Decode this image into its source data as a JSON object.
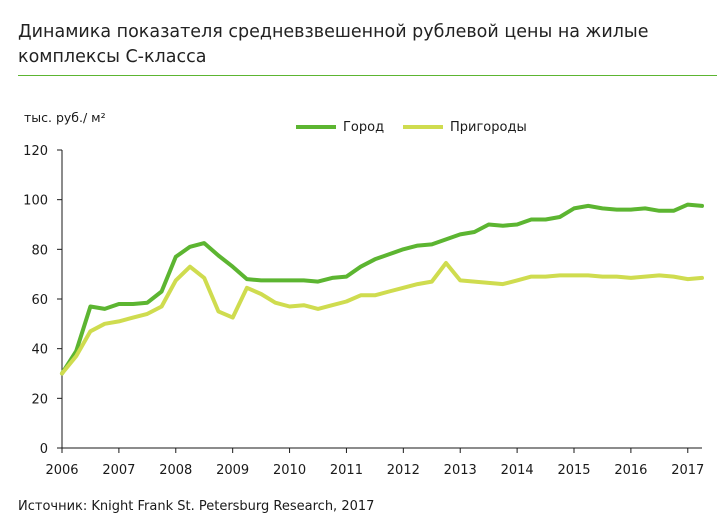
{
  "title": "Динамика показателя средневзвешенной рублевой цены на жилые комплексы С-класса",
  "source": "Источник: Knight Frank St. Petersburg Research, 2017",
  "colors": {
    "city": "#5cb531",
    "suburbs": "#cfdc4f",
    "axis": "#1a1a1a",
    "rule": "#5cb531"
  },
  "chart_data": {
    "type": "line",
    "ylabel": "тыс. руб./ м²",
    "ylim": [
      0,
      120
    ],
    "yticks": [
      0,
      20,
      40,
      60,
      80,
      100,
      120
    ],
    "xlim": [
      2006,
      2017.25
    ],
    "xticks": [
      "2006",
      "2007",
      "2008",
      "2009",
      "2010",
      "2011",
      "2012",
      "2013",
      "2014",
      "2015",
      "2016",
      "2017"
    ],
    "grid": false,
    "legend_position": "top-center",
    "series": [
      {
        "name": "Город",
        "color": "#5cb531",
        "x": [
          2006,
          2006.25,
          2006.5,
          2006.75,
          2007,
          2007.25,
          2007.5,
          2007.75,
          2008,
          2008.25,
          2008.5,
          2008.75,
          2009,
          2009.25,
          2009.5,
          2009.75,
          2010,
          2010.25,
          2010.5,
          2010.75,
          2011,
          2011.25,
          2011.5,
          2011.75,
          2012,
          2012.25,
          2012.5,
          2012.75,
          2013,
          2013.25,
          2013.5,
          2013.75,
          2014,
          2014.25,
          2014.5,
          2014.75,
          2015,
          2015.25,
          2015.5,
          2015.75,
          2016,
          2016.25,
          2016.5,
          2016.75,
          2017,
          2017.25
        ],
        "values": [
          30,
          39,
          57,
          56,
          58,
          58,
          58.5,
          63,
          77,
          81,
          82.5,
          77.5,
          73,
          68,
          67.5,
          67.5,
          67.5,
          67.5,
          67,
          68.5,
          69,
          73,
          76,
          78,
          80,
          81.5,
          82,
          84,
          86,
          87,
          90,
          89.5,
          90,
          92,
          92,
          93,
          96.5,
          97.5,
          96.5,
          96,
          96,
          96.5,
          95.5,
          95.5,
          98,
          97.5
        ]
      },
      {
        "name": "Пригороды",
        "color": "#cfdc4f",
        "x": [
          2006,
          2006.25,
          2006.5,
          2006.75,
          2007,
          2007.25,
          2007.5,
          2007.75,
          2008,
          2008.25,
          2008.5,
          2008.75,
          2009,
          2009.25,
          2009.5,
          2009.75,
          2010,
          2010.25,
          2010.5,
          2010.75,
          2011,
          2011.25,
          2011.5,
          2011.75,
          2012,
          2012.25,
          2012.5,
          2012.75,
          2013,
          2013.25,
          2013.5,
          2013.75,
          2014,
          2014.25,
          2014.5,
          2014.75,
          2015,
          2015.25,
          2015.5,
          2015.75,
          2016,
          2016.25,
          2016.5,
          2016.75,
          2017,
          2017.25
        ],
        "values": [
          30,
          37,
          47,
          50,
          51,
          52.5,
          54,
          57,
          67.5,
          73,
          68.5,
          55,
          52.5,
          64.5,
          62,
          58.5,
          57,
          57.5,
          56,
          57.5,
          59,
          61.5,
          61.5,
          63,
          64.5,
          66,
          67,
          74.5,
          67.5,
          67,
          66.5,
          66,
          67.5,
          69,
          69,
          69.5,
          69.5,
          69.5,
          69,
          69,
          68.5,
          69,
          69.5,
          69,
          68,
          68.5
        ]
      }
    ]
  }
}
